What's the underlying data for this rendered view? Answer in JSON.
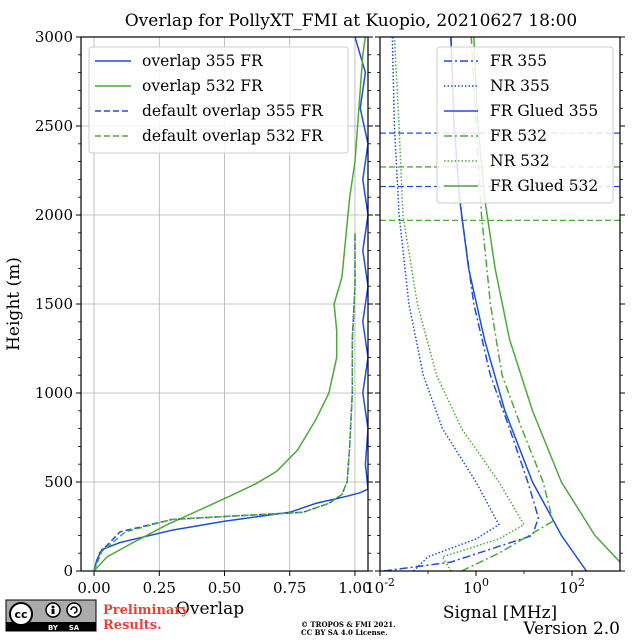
{
  "chart_data": [
    {
      "type": "line",
      "title": "Overlap for PollyXT_FMI at Kuopio, 20210627 18:00",
      "xlabel": "Overlap",
      "ylabel": "Height (m)",
      "xlim": [
        -0.05,
        1.05
      ],
      "ylim": [
        0,
        3000
      ],
      "xticks": [
        "0.00",
        "0.25",
        "0.50",
        "0.75",
        "1.00"
      ],
      "yticks": [
        "0",
        "500",
        "1000",
        "1500",
        "2000",
        "2500",
        "3000"
      ],
      "grid": true,
      "legend_position": "top",
      "series": [
        {
          "name": "overlap 355 FR",
          "color": "#1f4fd6",
          "style": "solid",
          "points": [
            [
              0.0,
              0
            ],
            [
              0.01,
              60
            ],
            [
              0.03,
              120
            ],
            [
              0.1,
              160
            ],
            [
              0.3,
              230
            ],
            [
              0.5,
              280
            ],
            [
              0.75,
              330
            ],
            [
              0.85,
              380
            ],
            [
              0.97,
              420
            ],
            [
              1.02,
              440
            ],
            [
              1.05,
              460
            ],
            [
              1.04,
              600
            ],
            [
              1.05,
              800
            ],
            [
              1.03,
              1000
            ],
            [
              1.05,
              1200
            ],
            [
              1.03,
              1400
            ],
            [
              1.05,
              1600
            ],
            [
              1.03,
              1800
            ],
            [
              1.05,
              2000
            ],
            [
              1.03,
              2200
            ],
            [
              1.05,
              2400
            ],
            [
              1.02,
              2600
            ],
            [
              1.04,
              2800
            ],
            [
              1.0,
              3000
            ]
          ]
        },
        {
          "name": "overlap 532 FR",
          "color": "#4fa83c",
          "style": "solid",
          "points": [
            [
              0.0,
              0
            ],
            [
              0.05,
              80
            ],
            [
              0.15,
              160
            ],
            [
              0.28,
              260
            ],
            [
              0.4,
              340
            ],
            [
              0.52,
              420
            ],
            [
              0.62,
              490
            ],
            [
              0.7,
              560
            ],
            [
              0.78,
              680
            ],
            [
              0.85,
              850
            ],
            [
              0.9,
              1000
            ],
            [
              0.93,
              1200
            ],
            [
              0.93,
              1350
            ],
            [
              0.92,
              1500
            ],
            [
              0.95,
              1650
            ],
            [
              0.96,
              1800
            ],
            [
              0.97,
              1950
            ],
            [
              0.98,
              2100
            ],
            [
              1.0,
              2300
            ],
            [
              1.01,
              2500
            ],
            [
              1.02,
              2700
            ],
            [
              1.03,
              2900
            ],
            [
              1.04,
              3000
            ]
          ]
        },
        {
          "name": "default overlap 355 FR",
          "color": "#1f4fd6",
          "style": "dashed",
          "points": [
            [
              0.0,
              0
            ],
            [
              0.02,
              100
            ],
            [
              0.1,
              220
            ],
            [
              0.3,
              290
            ],
            [
              0.55,
              310
            ],
            [
              0.8,
              330
            ],
            [
              0.9,
              380
            ],
            [
              0.95,
              430
            ],
            [
              0.97,
              500
            ],
            [
              0.98,
              700
            ],
            [
              0.99,
              1000
            ],
            [
              0.99,
              1300
            ],
            [
              1.0,
              1600
            ],
            [
              1.0,
              1900
            ]
          ]
        },
        {
          "name": "default overlap 532 FR",
          "color": "#4fa83c",
          "style": "dashed",
          "points": [
            [
              0.0,
              0
            ],
            [
              0.03,
              110
            ],
            [
              0.12,
              220
            ],
            [
              0.3,
              290
            ],
            [
              0.55,
              310
            ],
            [
              0.8,
              330
            ],
            [
              0.9,
              380
            ],
            [
              0.95,
              430
            ],
            [
              0.97,
              500
            ],
            [
              0.98,
              700
            ],
            [
              0.99,
              1000
            ],
            [
              0.99,
              1300
            ],
            [
              1.0,
              1600
            ],
            [
              1.0,
              1900
            ]
          ]
        }
      ]
    },
    {
      "type": "line",
      "xlabel": "Signal [MHz]",
      "xscale": "log",
      "xlim": [
        0.01,
        1000
      ],
      "ylim": [
        0,
        3000
      ],
      "xticks": [
        "10^-2",
        "10^0",
        "10^2"
      ],
      "grid": false,
      "legend_position": "top-right",
      "hlines": [
        {
          "y": 2460,
          "color": "#1f4fd6"
        },
        {
          "y": 2160,
          "color": "#1f4fd6"
        },
        {
          "y": 2270,
          "color": "#4fa83c"
        },
        {
          "y": 1970,
          "color": "#4fa83c"
        }
      ],
      "series": [
        {
          "name": "FR 355",
          "color": "#1f4fd6",
          "style": "dashdot",
          "points": [
            [
              0.012,
              0
            ],
            [
              0.3,
              50
            ],
            [
              15,
              200
            ],
            [
              20,
              300
            ],
            [
              12,
              500
            ],
            [
              5,
              800
            ],
            [
              2,
              1100
            ],
            [
              0.9,
              1500
            ],
            [
              0.5,
              2000
            ],
            [
              0.35,
              2500
            ],
            [
              0.3,
              3000
            ]
          ]
        },
        {
          "name": "NR 355",
          "color": "#1f4fd6",
          "style": "dotted",
          "points": [
            [
              0.05,
              0
            ],
            [
              0.1,
              80
            ],
            [
              1.0,
              180
            ],
            [
              3.0,
              260
            ],
            [
              1.0,
              500
            ],
            [
              0.2,
              800
            ],
            [
              0.08,
              1100
            ],
            [
              0.04,
              1500
            ],
            [
              0.025,
              2000
            ],
            [
              0.02,
              2500
            ],
            [
              0.018,
              3000
            ]
          ]
        },
        {
          "name": "FR Glued 355",
          "color": "#1f4fd6",
          "style": "solid",
          "points": [
            [
              200,
              0
            ],
            [
              60,
              200
            ],
            [
              15,
              500
            ],
            [
              4,
              900
            ],
            [
              1.5,
              1300
            ],
            [
              0.7,
              1700
            ],
            [
              0.45,
              2100
            ],
            [
              0.35,
              2500
            ],
            [
              0.3,
              3000
            ]
          ]
        },
        {
          "name": "FR 532",
          "color": "#4fa83c",
          "style": "dashdot",
          "points": [
            [
              0.5,
              0
            ],
            [
              3,
              100
            ],
            [
              40,
              280
            ],
            [
              25,
              500
            ],
            [
              9,
              800
            ],
            [
              3.5,
              1100
            ],
            [
              2,
              1500
            ],
            [
              1.3,
              2000
            ],
            [
              1,
              2500
            ],
            [
              0.8,
              3000
            ]
          ]
        },
        {
          "name": "NR 532",
          "color": "#4fa83c",
          "style": "dotted",
          "points": [
            [
              0.3,
              0
            ],
            [
              0.2,
              80
            ],
            [
              3,
              180
            ],
            [
              10,
              260
            ],
            [
              3,
              500
            ],
            [
              0.5,
              800
            ],
            [
              0.15,
              1100
            ],
            [
              0.06,
              1500
            ],
            [
              0.03,
              2000
            ],
            [
              0.025,
              2500
            ],
            [
              0.02,
              3000
            ]
          ]
        },
        {
          "name": "FR Glued 532",
          "color": "#4fa83c",
          "style": "solid",
          "points": [
            [
              1000,
              50
            ],
            [
              300,
              200
            ],
            [
              60,
              500
            ],
            [
              15,
              900
            ],
            [
              5,
              1300
            ],
            [
              2.5,
              1700
            ],
            [
              1.5,
              2100
            ],
            [
              1.1,
              2500
            ],
            [
              0.9,
              3000
            ]
          ]
        }
      ]
    }
  ],
  "footer": {
    "cc_badge": "cc",
    "cc_by": "BY",
    "cc_sa": "SA",
    "preliminary_line1": "Preliminary",
    "preliminary_line2": "Results.",
    "copyright_line1": "© TROPOS & FMI 2021.",
    "copyright_line2": "CC BY SA 4.0 License.",
    "version": "Version 2.0"
  }
}
